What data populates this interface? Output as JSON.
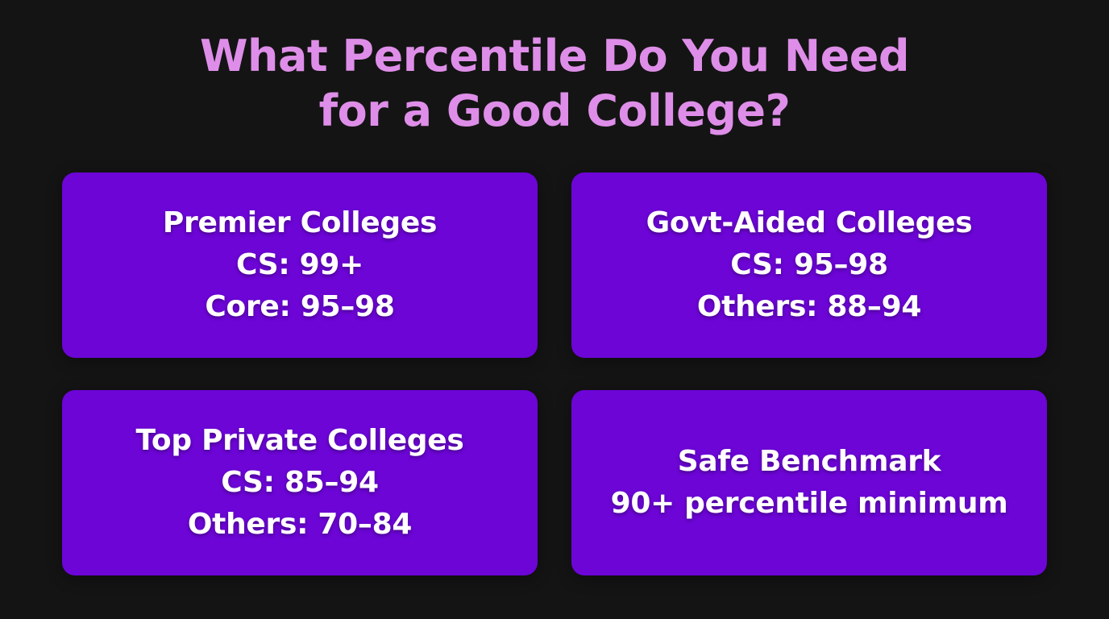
{
  "title": {
    "line1": "What Percentile Do You Need",
    "line2": "for a Good College?"
  },
  "cards": [
    {
      "heading": "Premier Colleges",
      "line1": "CS: 99+",
      "line2": "Core: 95–98"
    },
    {
      "heading": "Govt-Aided Colleges",
      "line1": "CS: 95–98",
      "line2": "Others: 88–94"
    },
    {
      "heading": "Top Private Colleges",
      "line1": "CS: 85–94",
      "line2": "Others: 70–84"
    },
    {
      "heading": "Safe Benchmark",
      "line1": "90+ percentile minimum"
    }
  ],
  "colors": {
    "background": "#141414",
    "title": "#de8ee8",
    "card": "#6c05d6",
    "card_text": "#ffffff"
  }
}
